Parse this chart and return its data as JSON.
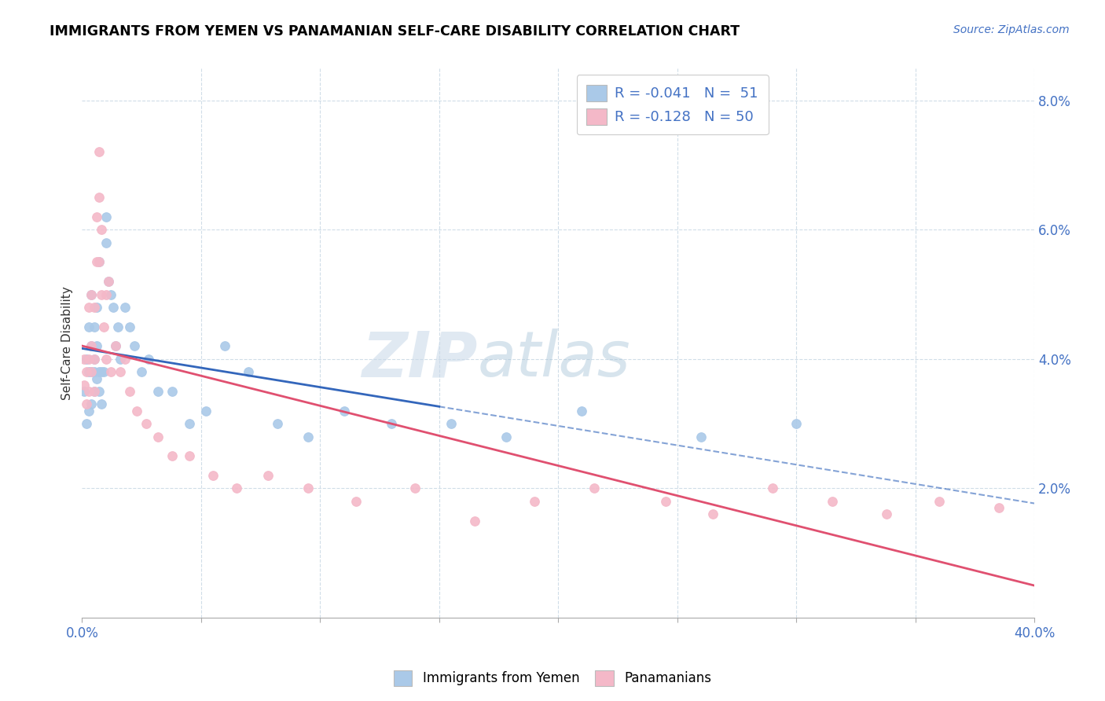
{
  "title": "IMMIGRANTS FROM YEMEN VS PANAMANIAN SELF-CARE DISABILITY CORRELATION CHART",
  "source": "Source: ZipAtlas.com",
  "ylabel": "Self-Care Disability",
  "xlim": [
    0.0,
    0.4
  ],
  "ylim": [
    0.0,
    0.085
  ],
  "yticks_right": [
    0.02,
    0.04,
    0.06,
    0.08
  ],
  "ytick_labels_right": [
    "2.0%",
    "4.0%",
    "6.0%",
    "8.0%"
  ],
  "blue_color": "#aac9e8",
  "pink_color": "#f4b8c8",
  "blue_line_color": "#3366bb",
  "pink_line_color": "#e05070",
  "grid_color": "#d0dde8",
  "watermark_zip": "ZIP",
  "watermark_atlas": "atlas",
  "blue_scatter_x": [
    0.001,
    0.002,
    0.002,
    0.003,
    0.003,
    0.003,
    0.004,
    0.004,
    0.004,
    0.004,
    0.005,
    0.005,
    0.005,
    0.005,
    0.006,
    0.006,
    0.006,
    0.007,
    0.007,
    0.007,
    0.008,
    0.008,
    0.009,
    0.01,
    0.01,
    0.011,
    0.012,
    0.013,
    0.014,
    0.015,
    0.016,
    0.018,
    0.02,
    0.022,
    0.025,
    0.028,
    0.032,
    0.038,
    0.045,
    0.052,
    0.06,
    0.07,
    0.082,
    0.095,
    0.11,
    0.13,
    0.155,
    0.178,
    0.21,
    0.26,
    0.3
  ],
  "blue_scatter_y": [
    0.035,
    0.03,
    0.04,
    0.032,
    0.038,
    0.045,
    0.033,
    0.038,
    0.042,
    0.05,
    0.035,
    0.038,
    0.04,
    0.045,
    0.037,
    0.042,
    0.048,
    0.035,
    0.038,
    0.055,
    0.033,
    0.038,
    0.038,
    0.058,
    0.062,
    0.052,
    0.05,
    0.048,
    0.042,
    0.045,
    0.04,
    0.048,
    0.045,
    0.042,
    0.038,
    0.04,
    0.035,
    0.035,
    0.03,
    0.032,
    0.042,
    0.038,
    0.03,
    0.028,
    0.032,
    0.03,
    0.03,
    0.028,
    0.032,
    0.028,
    0.03
  ],
  "pink_scatter_x": [
    0.001,
    0.001,
    0.002,
    0.002,
    0.003,
    0.003,
    0.003,
    0.004,
    0.004,
    0.004,
    0.005,
    0.005,
    0.005,
    0.006,
    0.006,
    0.007,
    0.007,
    0.007,
    0.008,
    0.008,
    0.009,
    0.01,
    0.01,
    0.011,
    0.012,
    0.014,
    0.016,
    0.018,
    0.02,
    0.023,
    0.027,
    0.032,
    0.038,
    0.045,
    0.055,
    0.065,
    0.078,
    0.095,
    0.115,
    0.14,
    0.165,
    0.19,
    0.215,
    0.245,
    0.265,
    0.29,
    0.315,
    0.338,
    0.36,
    0.385
  ],
  "pink_scatter_y": [
    0.036,
    0.04,
    0.033,
    0.038,
    0.035,
    0.04,
    0.048,
    0.038,
    0.042,
    0.05,
    0.035,
    0.04,
    0.048,
    0.055,
    0.062,
    0.055,
    0.065,
    0.072,
    0.05,
    0.06,
    0.045,
    0.04,
    0.05,
    0.052,
    0.038,
    0.042,
    0.038,
    0.04,
    0.035,
    0.032,
    0.03,
    0.028,
    0.025,
    0.025,
    0.022,
    0.02,
    0.022,
    0.02,
    0.018,
    0.02,
    0.015,
    0.018,
    0.02,
    0.018,
    0.016,
    0.02,
    0.018,
    0.016,
    0.018,
    0.017
  ],
  "blue_line_x_solid_end": 0.15,
  "legend_line1": "R = -0.041   N =  51",
  "legend_line2": "R = -0.128   N = 50"
}
